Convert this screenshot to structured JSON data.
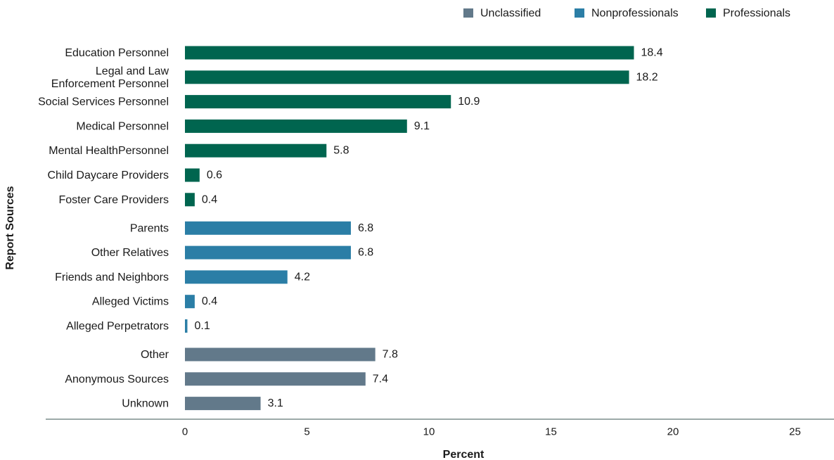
{
  "chart_data": {
    "type": "bar",
    "orientation": "horizontal",
    "xlabel": "Percent",
    "ylabel": "Report Sources",
    "xlim": [
      0,
      25
    ],
    "xticks": [
      0,
      5,
      10,
      15,
      20,
      25
    ],
    "grid": false,
    "legend_position": "top-right",
    "groups": [
      {
        "name": "Unclassified",
        "color": "#62798a"
      },
      {
        "name": "Nonprofessionals",
        "color": "#2b7ea6"
      },
      {
        "name": "Professionals",
        "color": "#00654f"
      }
    ],
    "legend_order": [
      "Unclassified",
      "Nonprofessionals",
      "Professionals"
    ],
    "bars": [
      {
        "label": [
          "Education Personnel"
        ],
        "value": 18.4,
        "value_label": "18.4",
        "group": "Professionals"
      },
      {
        "label": [
          "Legal and Law",
          "Enforcement Personnel"
        ],
        "value": 18.2,
        "value_label": "18.2",
        "group": "Professionals"
      },
      {
        "label": [
          "Social Services Personnel"
        ],
        "value": 10.9,
        "value_label": "10.9",
        "group": "Professionals"
      },
      {
        "label": [
          "Medical Personnel"
        ],
        "value": 9.1,
        "value_label": "9.1",
        "group": "Professionals"
      },
      {
        "label": [
          "Mental HealthPersonnel"
        ],
        "value": 5.8,
        "value_label": "5.8",
        "group": "Professionals"
      },
      {
        "label": [
          "Child Daycare Providers"
        ],
        "value": 0.6,
        "value_label": "0.6",
        "group": "Professionals"
      },
      {
        "label": [
          "Foster Care Providers"
        ],
        "value": 0.4,
        "value_label": "0.4",
        "group": "Professionals"
      },
      {
        "label": [
          "Parents"
        ],
        "value": 6.8,
        "value_label": "6.8",
        "group": "Nonprofessionals"
      },
      {
        "label": [
          "Other Relatives"
        ],
        "value": 6.8,
        "value_label": "6.8",
        "group": "Nonprofessionals"
      },
      {
        "label": [
          "Friends and Neighbors"
        ],
        "value": 4.2,
        "value_label": "4.2",
        "group": "Nonprofessionals"
      },
      {
        "label": [
          "Alleged Victims"
        ],
        "value": 0.4,
        "value_label": "0.4",
        "group": "Nonprofessionals"
      },
      {
        "label": [
          "Alleged Perpetrators"
        ],
        "value": 0.1,
        "value_label": "0.1",
        "group": "Nonprofessionals"
      },
      {
        "label": [
          "Other"
        ],
        "value": 7.8,
        "value_label": "7.8",
        "group": "Unclassified"
      },
      {
        "label": [
          "Anonymous Sources"
        ],
        "value": 7.4,
        "value_label": "7.4",
        "group": "Unclassified"
      },
      {
        "label": [
          "Unknown"
        ],
        "value": 3.1,
        "value_label": "3.1",
        "group": "Unclassified"
      }
    ]
  }
}
